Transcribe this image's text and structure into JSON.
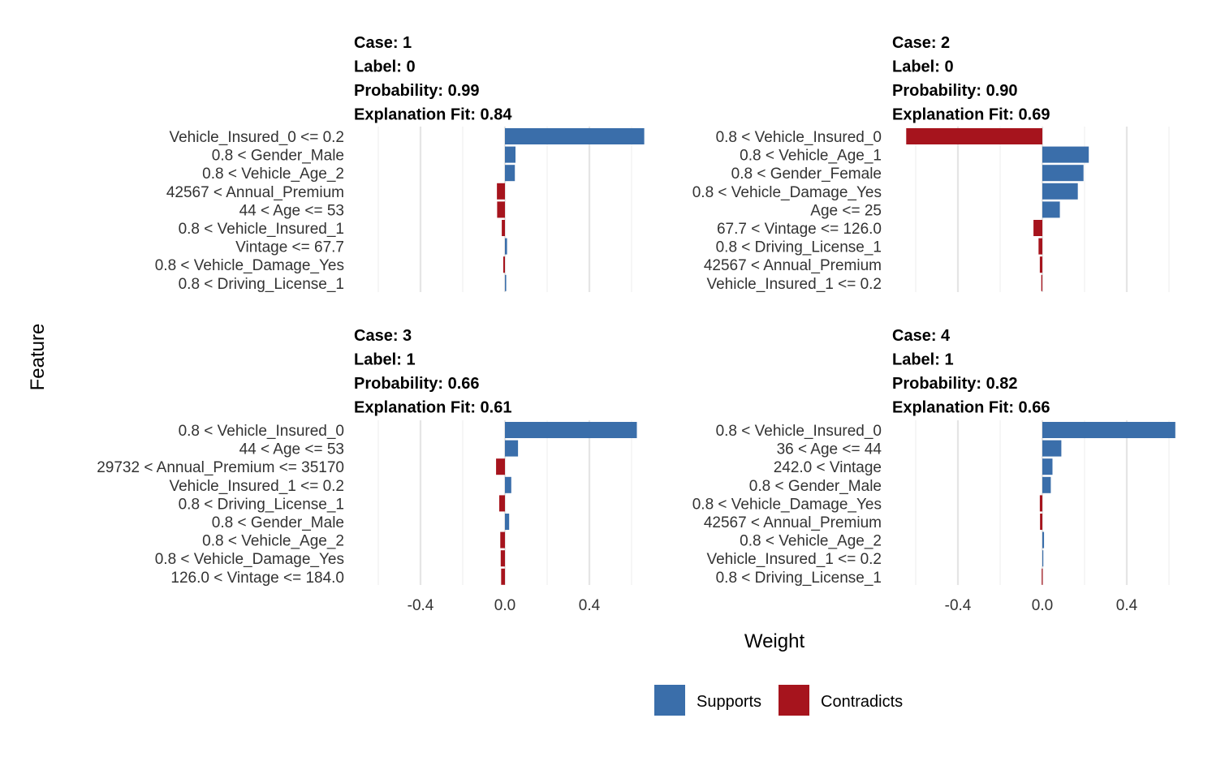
{
  "chart_data": {
    "type": "bar",
    "orientation": "horizontal",
    "layout": "facet-grid-2x2",
    "xlabel": "Weight",
    "ylabel": "Feature",
    "xlim": [
      -0.6,
      0.63
    ],
    "x_ticks": [
      -0.4,
      0.0,
      0.4
    ],
    "x_tick_labels": [
      "-0.4",
      "0.0",
      "0.4"
    ],
    "grid": true,
    "legend": {
      "position": "bottom",
      "items": [
        {
          "name": "Supports",
          "color": "#3A6EAA"
        },
        {
          "name": "Contradicts",
          "color": "#A6141D"
        }
      ]
    },
    "panels": [
      {
        "header": [
          "Case: 1",
          "Label: 0",
          "Probability: 0.99",
          "Explanation Fit: 0.84"
        ],
        "features": [
          "Vehicle_Insured_0 <= 0.2",
          "0.8 < Gender_Male",
          "0.8 < Vehicle_Age_2",
          "42567 < Annual_Premium",
          "44 < Age <= 53",
          "0.8 < Vehicle_Insured_1",
          "Vintage <= 67.7",
          "0.8 < Vehicle_Damage_Yes",
          "0.8 < Driving_License_1"
        ],
        "values": [
          0.66,
          0.05,
          0.047,
          -0.038,
          -0.037,
          -0.015,
          0.01,
          -0.008,
          0.006
        ]
      },
      {
        "header": [
          "Case: 2",
          "Label: 0",
          "Probability: 0.90",
          "Explanation Fit: 0.69"
        ],
        "features": [
          "0.8 < Vehicle_Insured_0",
          "0.8 < Vehicle_Age_1",
          "0.8 < Gender_Female",
          "0.8 < Vehicle_Damage_Yes",
          "Age <= 25",
          "67.7 < Vintage <= 126.0",
          "0.8 < Driving_License_1",
          "42567 < Annual_Premium",
          "Vehicle_Insured_1 <= 0.2"
        ],
        "values": [
          -0.645,
          0.22,
          0.195,
          0.168,
          0.083,
          -0.042,
          -0.018,
          -0.012,
          -0.005
        ]
      },
      {
        "header": [
          "Case: 3",
          "Label: 1",
          "Probability: 0.66",
          "Explanation Fit: 0.61"
        ],
        "features": [
          "0.8 < Vehicle_Insured_0",
          "44 < Age <= 53",
          "29732 < Annual_Premium <= 35170",
          "Vehicle_Insured_1 <= 0.2",
          "0.8 < Driving_License_1",
          "0.8 < Gender_Male",
          "0.8 < Vehicle_Age_2",
          "0.8 < Vehicle_Damage_Yes",
          "126.0 < Vintage <= 184.0"
        ],
        "values": [
          0.625,
          0.062,
          -0.042,
          0.03,
          -0.027,
          0.02,
          -0.022,
          -0.02,
          -0.018
        ]
      },
      {
        "header": [
          "Case: 4",
          "Label: 1",
          "Probability: 0.82",
          "Explanation Fit: 0.66"
        ],
        "features": [
          "0.8 < Vehicle_Insured_0",
          "36 < Age <= 44",
          "242.0 < Vintage",
          "0.8 < Gender_Male",
          "0.8 < Vehicle_Damage_Yes",
          "42567 < Annual_Premium",
          "0.8 < Vehicle_Age_2",
          "Vehicle_Insured_1 <= 0.2",
          "0.8 < Driving_License_1"
        ],
        "values": [
          0.63,
          0.09,
          0.048,
          0.04,
          -0.012,
          -0.011,
          0.008,
          0.004,
          -0.003
        ]
      }
    ]
  }
}
